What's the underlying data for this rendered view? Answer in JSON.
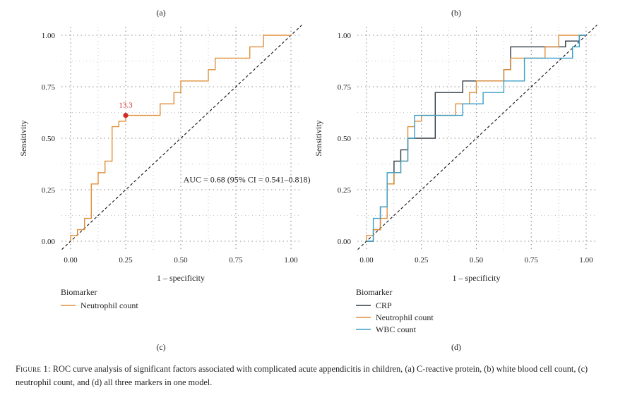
{
  "chart_data": [
    {
      "type": "line",
      "panel_label": "(a)",
      "bottom_label": "(c)",
      "xlabel": "1 – specificity",
      "ylabel": "Sensitivity",
      "xlim": [
        0,
        1
      ],
      "ylim": [
        0,
        1
      ],
      "x_ticks": [
        "0.00",
        "0.25",
        "0.50",
        "0.75",
        "1.00"
      ],
      "y_ticks": [
        "0.00",
        "0.25",
        "0.50",
        "0.75",
        "1.00"
      ],
      "grid": true,
      "diagonal_reference": true,
      "legend_title": "Biomarker",
      "legend_position": "bottom-left",
      "annotation": "AUC = 0.68 (95% CI = 0.541–0.818)",
      "annotation_at": [
        0.8,
        0.3
      ],
      "point": {
        "label": "13.3",
        "x": 0.25,
        "y": 0.611,
        "color": "#d62a2a"
      },
      "series": [
        {
          "name": "Neutrophil count",
          "color": "#e08f3a",
          "points": [
            [
              0,
              0
            ],
            [
              0,
              0.028
            ],
            [
              0.031,
              0.028
            ],
            [
              0.031,
              0.056
            ],
            [
              0.063,
              0.056
            ],
            [
              0.063,
              0.083
            ],
            [
              0.063,
              0.111
            ],
            [
              0.094,
              0.111
            ],
            [
              0.094,
              0.194
            ],
            [
              0.094,
              0.278
            ],
            [
              0.125,
              0.278
            ],
            [
              0.125,
              0.333
            ],
            [
              0.156,
              0.333
            ],
            [
              0.156,
              0.389
            ],
            [
              0.188,
              0.389
            ],
            [
              0.188,
              0.5
            ],
            [
              0.188,
              0.556
            ],
            [
              0.219,
              0.556
            ],
            [
              0.219,
              0.583
            ],
            [
              0.25,
              0.583
            ],
            [
              0.25,
              0.611
            ],
            [
              0.406,
              0.611
            ],
            [
              0.406,
              0.667
            ],
            [
              0.469,
              0.667
            ],
            [
              0.469,
              0.722
            ],
            [
              0.5,
              0.722
            ],
            [
              0.5,
              0.778
            ],
            [
              0.625,
              0.778
            ],
            [
              0.625,
              0.833
            ],
            [
              0.656,
              0.833
            ],
            [
              0.656,
              0.889
            ],
            [
              0.813,
              0.889
            ],
            [
              0.813,
              0.944
            ],
            [
              0.875,
              0.944
            ],
            [
              0.875,
              1
            ],
            [
              1,
              1
            ]
          ]
        }
      ]
    },
    {
      "type": "line",
      "panel_label": "(b)",
      "bottom_label": "(d)",
      "xlabel": "1 – specificity",
      "ylabel": "Sensitivity",
      "xlim": [
        0,
        1
      ],
      "ylim": [
        0,
        1
      ],
      "x_ticks": [
        "0.00",
        "0.25",
        "0.50",
        "0.75",
        "1.00"
      ],
      "y_ticks": [
        "0.00",
        "0.25",
        "0.50",
        "0.75",
        "1.00"
      ],
      "grid": true,
      "diagonal_reference": true,
      "legend_title": "Biomarker",
      "legend_position": "bottom-left",
      "series": [
        {
          "name": "CRP",
          "color": "#2f3a44",
          "points": [
            [
              0,
              0
            ],
            [
              0.031,
              0
            ],
            [
              0.031,
              0.056
            ],
            [
              0.063,
              0.056
            ],
            [
              0.063,
              0.167
            ],
            [
              0.094,
              0.167
            ],
            [
              0.094,
              0.278
            ],
            [
              0.125,
              0.278
            ],
            [
              0.125,
              0.389
            ],
            [
              0.156,
              0.389
            ],
            [
              0.156,
              0.444
            ],
            [
              0.188,
              0.444
            ],
            [
              0.188,
              0.5
            ],
            [
              0.313,
              0.5
            ],
            [
              0.313,
              0.611
            ],
            [
              0.313,
              0.722
            ],
            [
              0.438,
              0.722
            ],
            [
              0.438,
              0.778
            ],
            [
              0.625,
              0.778
            ],
            [
              0.625,
              0.833
            ],
            [
              0.656,
              0.833
            ],
            [
              0.656,
              0.944
            ],
            [
              0.906,
              0.944
            ],
            [
              0.906,
              0.972
            ],
            [
              0.969,
              0.972
            ],
            [
              0.969,
              1
            ],
            [
              1,
              1
            ]
          ]
        },
        {
          "name": "Neutrophil count",
          "color": "#e08f3a",
          "points": [
            [
              0,
              0
            ],
            [
              0,
              0.028
            ],
            [
              0.031,
              0.028
            ],
            [
              0.031,
              0.056
            ],
            [
              0.063,
              0.056
            ],
            [
              0.063,
              0.083
            ],
            [
              0.063,
              0.111
            ],
            [
              0.094,
              0.111
            ],
            [
              0.094,
              0.194
            ],
            [
              0.094,
              0.278
            ],
            [
              0.125,
              0.278
            ],
            [
              0.125,
              0.333
            ],
            [
              0.156,
              0.333
            ],
            [
              0.156,
              0.389
            ],
            [
              0.188,
              0.389
            ],
            [
              0.188,
              0.5
            ],
            [
              0.188,
              0.556
            ],
            [
              0.219,
              0.556
            ],
            [
              0.219,
              0.583
            ],
            [
              0.25,
              0.583
            ],
            [
              0.25,
              0.611
            ],
            [
              0.406,
              0.611
            ],
            [
              0.406,
              0.667
            ],
            [
              0.469,
              0.667
            ],
            [
              0.469,
              0.722
            ],
            [
              0.5,
              0.722
            ],
            [
              0.5,
              0.778
            ],
            [
              0.625,
              0.778
            ],
            [
              0.625,
              0.833
            ],
            [
              0.656,
              0.833
            ],
            [
              0.656,
              0.889
            ],
            [
              0.813,
              0.889
            ],
            [
              0.813,
              0.944
            ],
            [
              0.875,
              0.944
            ],
            [
              0.875,
              1
            ],
            [
              1,
              1
            ]
          ]
        },
        {
          "name": "WBC count",
          "color": "#3a9fc7",
          "points": [
            [
              0,
              0
            ],
            [
              0.031,
              0
            ],
            [
              0.031,
              0.056
            ],
            [
              0.031,
              0.111
            ],
            [
              0.063,
              0.111
            ],
            [
              0.063,
              0.167
            ],
            [
              0.094,
              0.167
            ],
            [
              0.094,
              0.333
            ],
            [
              0.156,
              0.333
            ],
            [
              0.156,
              0.389
            ],
            [
              0.188,
              0.389
            ],
            [
              0.188,
              0.5
            ],
            [
              0.219,
              0.5
            ],
            [
              0.219,
              0.611
            ],
            [
              0.438,
              0.611
            ],
            [
              0.438,
              0.667
            ],
            [
              0.531,
              0.667
            ],
            [
              0.531,
              0.722
            ],
            [
              0.625,
              0.722
            ],
            [
              0.625,
              0.778
            ],
            [
              0.719,
              0.778
            ],
            [
              0.719,
              0.833
            ],
            [
              0.719,
              0.889
            ],
            [
              0.938,
              0.889
            ],
            [
              0.938,
              0.944
            ],
            [
              0.969,
              0.944
            ],
            [
              0.969,
              1
            ],
            [
              1,
              1
            ]
          ]
        }
      ]
    }
  ],
  "caption": {
    "label": "Figure 1:",
    "text": " ROC curve analysis of significant factors associated with complicated acute appendicitis in children, (a) C-reactive protein, (b) white blood cell count, (c) neutrophil count, and (d) all three markers in one model."
  }
}
